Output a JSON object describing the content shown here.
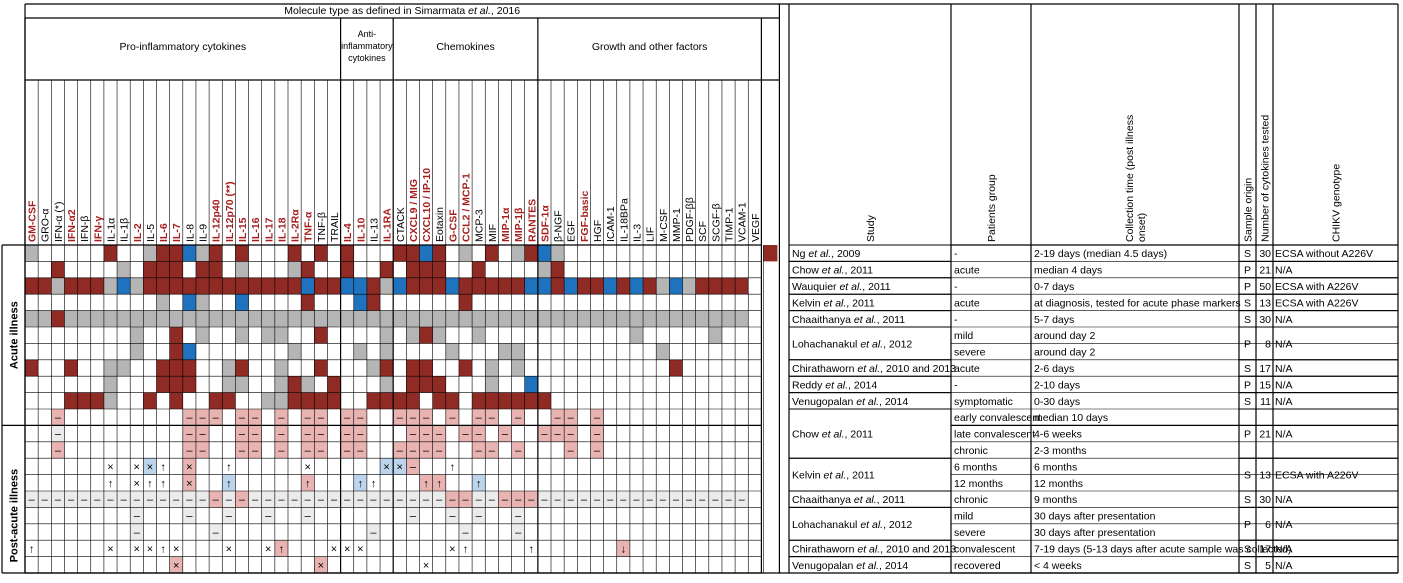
{
  "title": "Molecule type as defined in Simarmata et al., 2016",
  "groups": [
    {
      "label": "Pro-inflammatory cytokines",
      "span": 24
    },
    {
      "label": "Anti-inflammatory cytokines",
      "span": 4
    },
    {
      "label": "Chemokines",
      "span": 11
    },
    {
      "label": "Growth and other factors",
      "span": 17
    }
  ],
  "colors": {
    "red": "#8f2a25",
    "grey": "#b5b5b5",
    "blue": "#1f73be",
    "lightred": "#e8b3b1",
    "lightblue": "#bcd4ec",
    "lightgrey": "#ebebeb",
    "redText": "#a51d1d"
  },
  "molecules": [
    {
      "name": "GM-CSF",
      "red": 1
    },
    {
      "name": "GRO-α",
      "red": 0
    },
    {
      "name": "IFN-α (*)",
      "red": 0
    },
    {
      "name": "IFN-α2",
      "red": 1
    },
    {
      "name": "IFN-β",
      "red": 0
    },
    {
      "name": "IFN-γ",
      "red": 1
    },
    {
      "name": "IL-1α",
      "red": 0
    },
    {
      "name": "IL-1β",
      "red": 0
    },
    {
      "name": "IL-2",
      "red": 1
    },
    {
      "name": "IL-5",
      "red": 0
    },
    {
      "name": "IL-6",
      "red": 1
    },
    {
      "name": "IL-7",
      "red": 1
    },
    {
      "name": "IL-8",
      "red": 0
    },
    {
      "name": "IL-9",
      "red": 0
    },
    {
      "name": "IL-12p40",
      "red": 1
    },
    {
      "name": "IL-12p70 (**)",
      "red": 1
    },
    {
      "name": "IL-15",
      "red": 1
    },
    {
      "name": "IL-16",
      "red": 1
    },
    {
      "name": "IL-17",
      "red": 1
    },
    {
      "name": "IL-18",
      "red": 1
    },
    {
      "name": "IL-2Rα",
      "red": 1
    },
    {
      "name": "TNF-α",
      "red": 1
    },
    {
      "name": "TNF-β",
      "red": 0
    },
    {
      "name": "TRAIL",
      "red": 0
    },
    {
      "name": "IL-4",
      "red": 1
    },
    {
      "name": "IL-10",
      "red": 1
    },
    {
      "name": "IL-13",
      "red": 0
    },
    {
      "name": "IL-1RA",
      "red": 1
    },
    {
      "name": "CTACK",
      "red": 0
    },
    {
      "name": "CXCL9 / MIG",
      "red": 1
    },
    {
      "name": "CXCL10 / IP-10",
      "red": 1
    },
    {
      "name": "Eotaxin",
      "red": 0
    },
    {
      "name": "G-CSF",
      "red": 1
    },
    {
      "name": "CCL2 / MCP-1",
      "red": 1
    },
    {
      "name": "MCP-3",
      "red": 0
    },
    {
      "name": "MIF",
      "red": 0
    },
    {
      "name": "MIP-1α",
      "red": 1
    },
    {
      "name": "MIP-1β",
      "red": 1
    },
    {
      "name": "RANTES",
      "red": 1
    },
    {
      "name": "SDF-1α",
      "red": 1
    },
    {
      "name": "β-NGF",
      "red": 0
    },
    {
      "name": "EGF",
      "red": 0
    },
    {
      "name": "FGF-basic",
      "red": 1
    },
    {
      "name": "HGF",
      "red": 0
    },
    {
      "name": "ICAM-1",
      "red": 0
    },
    {
      "name": "IL-18BPa",
      "red": 0
    },
    {
      "name": "IL-3",
      "red": 0
    },
    {
      "name": "LIF",
      "red": 0
    },
    {
      "name": "M-CSF",
      "red": 0
    },
    {
      "name": "MMP-1",
      "red": 0
    },
    {
      "name": "PDGF-ββ",
      "red": 0
    },
    {
      "name": "SCF",
      "red": 0
    },
    {
      "name": "SCGF-β",
      "red": 0
    },
    {
      "name": "TIMP-1",
      "red": 0
    },
    {
      "name": "VCAM-1",
      "red": 0
    },
    {
      "name": "VEGF",
      "red": 0
    }
  ],
  "headers": {
    "study": "Study",
    "patients": "Patients group",
    "collection": "Collection time (post illness onset)",
    "origin": "Sample origin",
    "number": "Number of cytokines tested",
    "genotype": "CHIKV genotype"
  },
  "sections": [
    {
      "label": "Acute illness",
      "rows": [
        0,
        10
      ]
    },
    {
      "label": "Post-acute illness",
      "rows": [
        11,
        21
      ]
    }
  ],
  "studies": [
    {
      "study": "Ng et al., 2009",
      "rows": [
        0,
        0
      ],
      "origin": "S",
      "number": "30",
      "genotype": "ECSA without A226V"
    },
    {
      "study": "Chow et al., 2011",
      "rows": [
        1,
        1
      ],
      "origin": "P",
      "number": "21",
      "genotype": "N/A"
    },
    {
      "study": "Wauquier et al., 2011",
      "rows": [
        2,
        2
      ],
      "origin": "P",
      "number": "50",
      "genotype": "ECSA with A226V"
    },
    {
      "study": "Kelvin et al., 2011",
      "rows": [
        3,
        3
      ],
      "origin": "S",
      "number": "13",
      "genotype": "ECSA with A226V"
    },
    {
      "study": "Chaaithanya et al., 2011",
      "rows": [
        4,
        4
      ],
      "origin": "S",
      "number": "30",
      "genotype": "N/A"
    },
    {
      "study": "Lohachanakul et al., 2012",
      "rows": [
        5,
        6
      ],
      "origin": "P",
      "number": "8",
      "genotype": "N/A"
    },
    {
      "study": "Chirathaworn et al., 2010 and 2013",
      "rows": [
        7,
        7
      ],
      "origin": "S",
      "number": "17",
      "genotype": "N/A"
    },
    {
      "study": "Reddy et al., 2014",
      "rows": [
        8,
        8
      ],
      "origin": "P",
      "number": "15",
      "genotype": "N/A"
    },
    {
      "study": "Venugopalan et al., 2014",
      "rows": [
        9,
        9
      ],
      "origin": "S",
      "number": "11",
      "genotype": "N/A"
    },
    {
      "study": "Chow et al., 2011",
      "rows": [
        10,
        12
      ],
      "origin": "P",
      "number": "21",
      "genotype": "N/A"
    },
    {
      "study": "Kelvin et al., 2011",
      "rows": [
        13,
        14
      ],
      "origin": "S",
      "number": "13",
      "genotype": "ECSA with A226V"
    },
    {
      "study": "Chaaithanya et al., 2011",
      "rows": [
        15,
        15
      ],
      "origin": "S",
      "number": "30",
      "genotype": "N/A"
    },
    {
      "study": "Lohachanakul et al., 2012",
      "rows": [
        16,
        17
      ],
      "origin": "P",
      "number": "6",
      "genotype": "N/A"
    },
    {
      "study": "Chirathaworn et al., 2010 and 2013",
      "rows": [
        18,
        18
      ],
      "origin": "S",
      "number": "17",
      "genotype": "N/A"
    },
    {
      "study": "Venugopalan et al., 2014",
      "rows": [
        19,
        19
      ],
      "origin": "S",
      "number": "5",
      "genotype": "N/A"
    }
  ],
  "rows": [
    {
      "patients": "-",
      "collection": "2-19 days (median 4.5 days)",
      "cells": "G.....R..GRRBGR.R...R.R.R...RRBR.G.R.GRBG...............R"
    },
    {
      "patients": "acute",
      "collection": "median 4 days",
      "cells": "..R....G.RRR.RR.G...GR..R..R.RRR..R....GR.............."
    },
    {
      "patients": "-",
      "collection": "0-7 days",
      "cells": "RRGRRRGBGRRRRRRRRRRRRBRRBBRGBRRRBRRRRRBBRBRRBRBRGBGRRRR"
    },
    {
      "patients": "acute",
      "collection": "at diagnosis, tested for acute phase markers",
      "cells": "..........G.BG..B....R...BR......R......................"
    },
    {
      "patients": "-",
      "collection": "5-7 days",
      "cells": "GGRGGGGGGGGGGGGGGGGGGGGGGGGGGGGGGGGGGGGGGGGGGGGGGGGGGGG"
    },
    {
      "patients": "mild",
      "collection": "around day 2",
      "cells": "........G..R.G..G.GG..R....G.GRG..G...........G.....G..."
    },
    {
      "patients": "severe",
      "collection": "around day 2",
      "cells": "........G..RB.......G....G.G....G...GG..........G......"
    },
    {
      "patients": "acute",
      "collection": "2-6 days",
      "cells": "R..R..GG..RRR..GR..G..R...GR.RR..R.G.G...........R......"
    },
    {
      "patients": "-",
      "collection": "2-10 days",
      "cells": "......G...RRR..GG..GRG.R...G.RRR...G..B................"
    },
    {
      "patients": "symptomatic",
      "collection": "0-30 days",
      "cells": "...RRRG..R.R..RR..GGRRRR..RRRR.RR.RRRRRR..............."
    },
    {
      "patients": "early convalescent",
      "collection": "median 10 days",
      "cells": "..l.........lll.ll.l.ll.ll..lll.l.ll.l..ll.l..........."
    },
    {
      "patients": "late convalescent",
      "collection": "4-6 weeks",
      "cells": "..n.........ll..ll.l.ll.ll...lll.ll.l..lll.l..........."
    },
    {
      "patients": "chronic",
      "collection": "2-3 months",
      "cells": "..l.........ll..ll.l.ll.ll..llll..ll.l...l.l..........."
    },
    {
      "patients": "6 months",
      "collection": "6 months",
      "cells": "......x.xcu.k..u.....x.....ccl..u....................."
    },
    {
      "patients": "12 months",
      "collection": "12 months",
      "cells": "......u.xuu.k..b.....d...bu...dd..b...................."
    },
    {
      "patients": "chronic",
      "collection": "9 months",
      "cells": "nnnnnnnnnnnnnnlnlnnnnnnnnnnnnnnnllnnlllnnnnnnnnnnnnnnnn"
    },
    {
      "patients": "mild",
      "collection": "30 days after presentation",
      "cells": "........n...n..n..n..n.......n..n.n..n.................."
    },
    {
      "patients": "severe",
      "collection": "30 days after presentation",
      "cells": "........n.....n...........n......n...n................."
    },
    {
      "patients": "convalescent",
      "collection": "7-19 days (5-13 days after acute sample was collected)",
      "cells": "u.....x.xxux...x..xp...xxx......xu....u......m.........."
    },
    {
      "patients": "recovered",
      "collection": "< 4 weeks",
      "cells": "...........k..........k.......x........................."
    }
  ]
}
